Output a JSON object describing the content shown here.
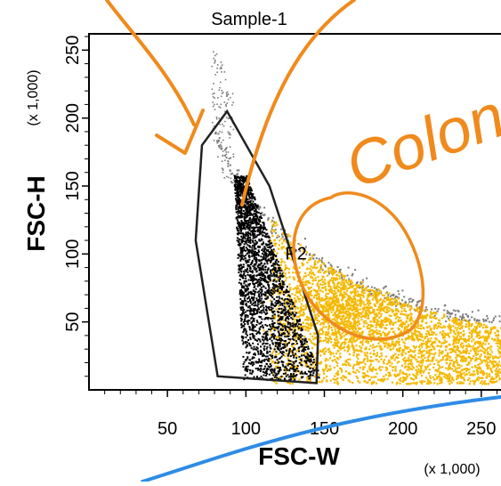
{
  "chart_data": {
    "type": "scatter",
    "title": "Sample-1",
    "xlabel": "FSC-W",
    "ylabel": "FSC-H",
    "x_unit": "(x 1,000)",
    "y_unit": "(x 1,000)",
    "xlim": [
      0,
      262
    ],
    "ylim": [
      0,
      262
    ],
    "x_ticks": [
      50,
      100,
      150,
      200,
      250
    ],
    "y_ticks": [
      50,
      100,
      150,
      200,
      250
    ],
    "x_tick_labels": [
      "50",
      "100",
      "150",
      "200",
      "250"
    ],
    "y_tick_labels": [
      "50",
      "100",
      "150",
      "200",
      "250"
    ],
    "grid": false,
    "legend": "none",
    "gate": {
      "label": "P2",
      "polygon": [
        [
          88,
          205
        ],
        [
          72,
          180
        ],
        [
          68,
          110
        ],
        [
          82,
          10
        ],
        [
          145,
          5
        ],
        [
          146,
          40
        ],
        [
          115,
          150
        ]
      ]
    },
    "populations": [
      {
        "color": "#000000",
        "region": "inside-gate",
        "center": [
          110,
          80
        ]
      },
      {
        "color": "#f5b800",
        "region": "outside-gate",
        "center": [
          170,
          60
        ]
      },
      {
        "color": "#7a7a7a",
        "region": "upper-edge",
        "center": [
          150,
          120
        ]
      }
    ],
    "colors": {
      "gated_events": "#000000",
      "ungated_events": "#f5b800",
      "edge_events": "#7a7a7a",
      "annotation_orange": "#f08a1c",
      "annotation_blue": "#2e8ce6"
    },
    "annotations": {
      "handwriting": "Colon"
    }
  }
}
